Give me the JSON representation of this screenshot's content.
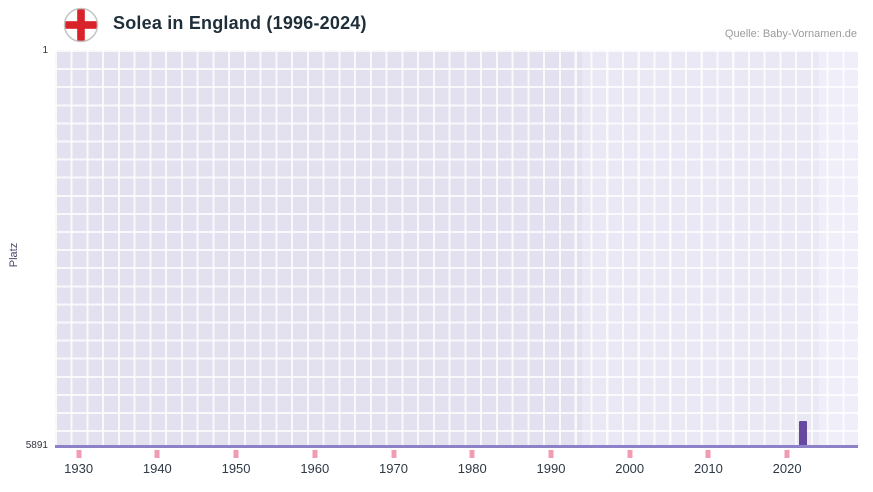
{
  "header": {
    "title": "Solea in England (1996-2024)",
    "source": "Quelle: Baby-Vornamen.de"
  },
  "chart_data": {
    "type": "bar",
    "title": "Solea in England (1996-2024)",
    "xlabel": "",
    "ylabel": "Platz",
    "x_range": [
      1927,
      2029
    ],
    "x_ticks": [
      1930,
      1940,
      1950,
      1960,
      1970,
      1980,
      1990,
      2000,
      2010,
      2020
    ],
    "y_axis": {
      "min": 1,
      "max": 5891,
      "inverted": true,
      "top_label": "1",
      "bottom_label": "5891"
    },
    "series": [
      {
        "name": "Solea",
        "points": [
          {
            "x": 2022,
            "y": 5891
          }
        ]
      }
    ],
    "bands": [
      {
        "from": 1994,
        "to": 2024,
        "color": "#eae8f5"
      },
      {
        "from": 2024,
        "to": 2029,
        "color": "#f0eef9"
      }
    ],
    "grid": true,
    "legend": false,
    "colors": {
      "bar": "#67489f",
      "axis_line": "#8d82c8",
      "tick_mark": "#f19cb2",
      "plot_background": "#e3e0ef",
      "title_text": "#1e2f3a",
      "source_text": "#9b9b9b"
    }
  }
}
